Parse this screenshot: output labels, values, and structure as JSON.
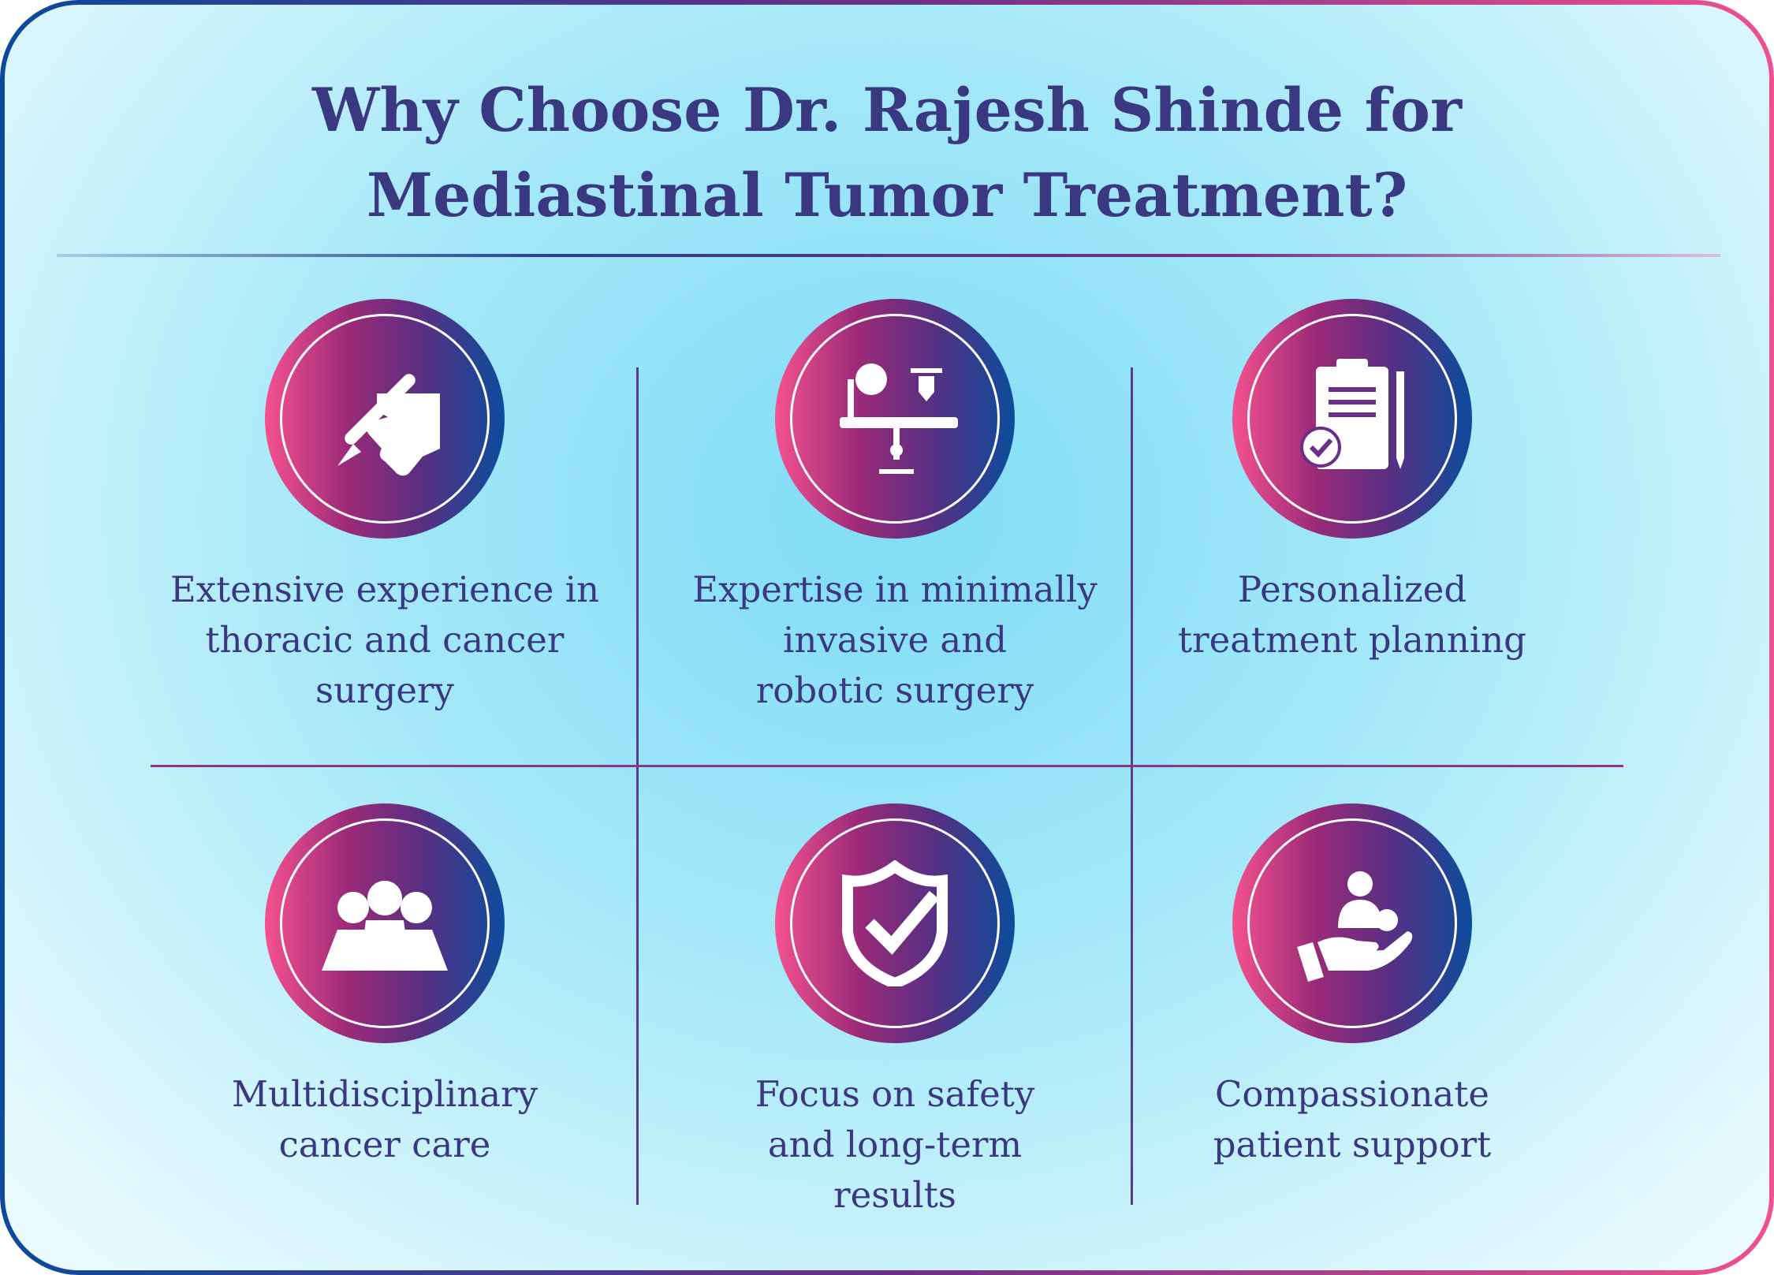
{
  "title": {
    "line1": "Why Choose Dr. Rajesh Shinde for",
    "line2": "Mediastinal Tumor Treatment?"
  },
  "colors": {
    "text": "#3a3880",
    "gradient_start": "#f4528f",
    "gradient_end": "#0b4c9c"
  },
  "features": [
    {
      "icon": "hand-scalpel-icon",
      "lines": [
        "Extensive experience in",
        "thoracic and cancer",
        "surgery"
      ]
    },
    {
      "icon": "robotic-surgery-icon",
      "lines": [
        "Expertise in minimally",
        "invasive and",
        "robotic surgery"
      ]
    },
    {
      "icon": "clipboard-plan-icon",
      "lines": [
        "Personalized",
        "treatment planning"
      ]
    },
    {
      "icon": "medical-team-icon",
      "lines": [
        "Multidisciplinary",
        "cancer care"
      ]
    },
    {
      "icon": "shield-check-icon",
      "lines": [
        "Focus on safety",
        "and long-term",
        "results"
      ]
    },
    {
      "icon": "hand-patient-care-icon",
      "lines": [
        "Compassionate",
        "patient support"
      ]
    }
  ]
}
